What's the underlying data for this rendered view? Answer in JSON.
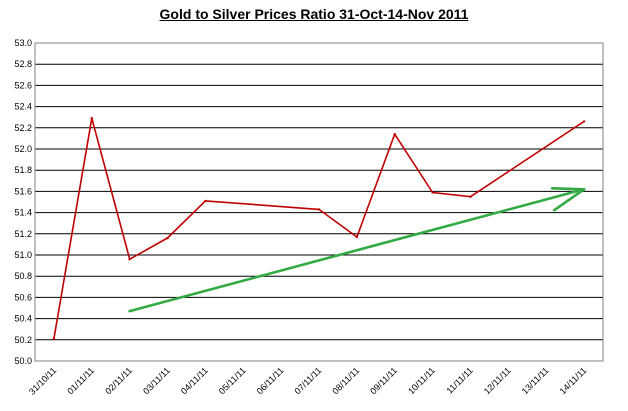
{
  "chart_data": {
    "type": "line",
    "title": "Gold to Silver Prices Ratio 31-Oct-14-Nov 2011",
    "xlabel": "",
    "ylabel": "",
    "ylim": [
      50.0,
      53.0
    ],
    "y_ticks": [
      "50.0",
      "50.2",
      "50.4",
      "50.6",
      "50.8",
      "51.0",
      "51.2",
      "51.4",
      "51.6",
      "51.8",
      "52.0",
      "52.2",
      "52.4",
      "52.6",
      "52.8",
      "53.0"
    ],
    "categories": [
      "31/10/11",
      "01/11/11",
      "02/11/11",
      "03/11/11",
      "04/11/11",
      "05/11/11",
      "06/11/11",
      "07/11/11",
      "08/11/11",
      "09/11/11",
      "10/11/11",
      "11/11/11",
      "12/11/11",
      "13/11/11",
      "14/11/11"
    ],
    "grid": true,
    "legend": "none",
    "series": [
      {
        "color": "#c00000",
        "points": [
          {
            "x": "31/10/11",
            "y": 50.21
          },
          {
            "x": "01/11/11",
            "y": 52.29
          },
          {
            "x": "02/11/11",
            "y": 50.96
          },
          {
            "x": "03/11/11",
            "y": 51.16
          },
          {
            "x": "04/11/11",
            "y": 51.51
          },
          {
            "x": "07/11/11",
            "y": 51.43
          },
          {
            "x": "08/11/11",
            "y": 51.17
          },
          {
            "x": "09/11/11",
            "y": 52.14
          },
          {
            "x": "10/11/11",
            "y": 51.59
          },
          {
            "x": "11/11/11",
            "y": 51.55
          },
          {
            "x": "14/11/11",
            "y": 52.26
          }
        ]
      }
    ],
    "trend_arrow": {
      "color": "#33aa44",
      "start": {
        "x": "02/11/11",
        "y": 50.47
      },
      "end": {
        "x": "14/11/11",
        "y": 51.62
      }
    }
  }
}
